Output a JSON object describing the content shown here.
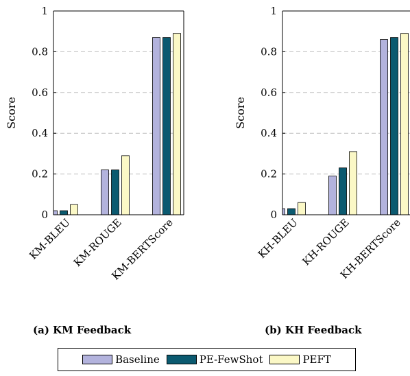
{
  "chart_data": [
    {
      "type": "bar",
      "caption": "(a) KM Feedback",
      "ylabel": "Score",
      "categories": [
        "KM-BLEU",
        "KM-ROUGE",
        "KM-BERTScore"
      ],
      "ylim": [
        0,
        1
      ],
      "yticks": [
        "0",
        "0.2",
        "0.4",
        "0.6",
        "0.8",
        "1"
      ],
      "grid": "horizontal dashed",
      "series": [
        {
          "name": "Baseline",
          "values": [
            0.02,
            0.22,
            0.87
          ]
        },
        {
          "name": "PE-FewShot",
          "values": [
            0.02,
            0.22,
            0.87
          ]
        },
        {
          "name": "PEFT",
          "values": [
            0.05,
            0.29,
            0.89
          ]
        }
      ]
    },
    {
      "type": "bar",
      "caption": "(b) KH Feedback",
      "ylabel": "Score",
      "categories": [
        "KH-BLEU",
        "KH-ROUGE",
        "KH-BERTScore"
      ],
      "ylim": [
        0,
        1
      ],
      "yticks": [
        "0",
        "0.2",
        "0.4",
        "0.6",
        "0.8",
        "1"
      ],
      "grid": "horizontal dashed",
      "series": [
        {
          "name": "Baseline",
          "values": [
            0.03,
            0.19,
            0.86
          ]
        },
        {
          "name": "PE-FewShot",
          "values": [
            0.03,
            0.23,
            0.87
          ]
        },
        {
          "name": "PEFT",
          "values": [
            0.06,
            0.31,
            0.89
          ]
        }
      ]
    }
  ],
  "legend": {
    "items": [
      {
        "label": "Baseline",
        "color": "#b3b3dd"
      },
      {
        "label": "PE-FewShot",
        "color": "#0b5a70"
      },
      {
        "label": "PEFT",
        "color": "#fbf8c6"
      }
    ]
  }
}
